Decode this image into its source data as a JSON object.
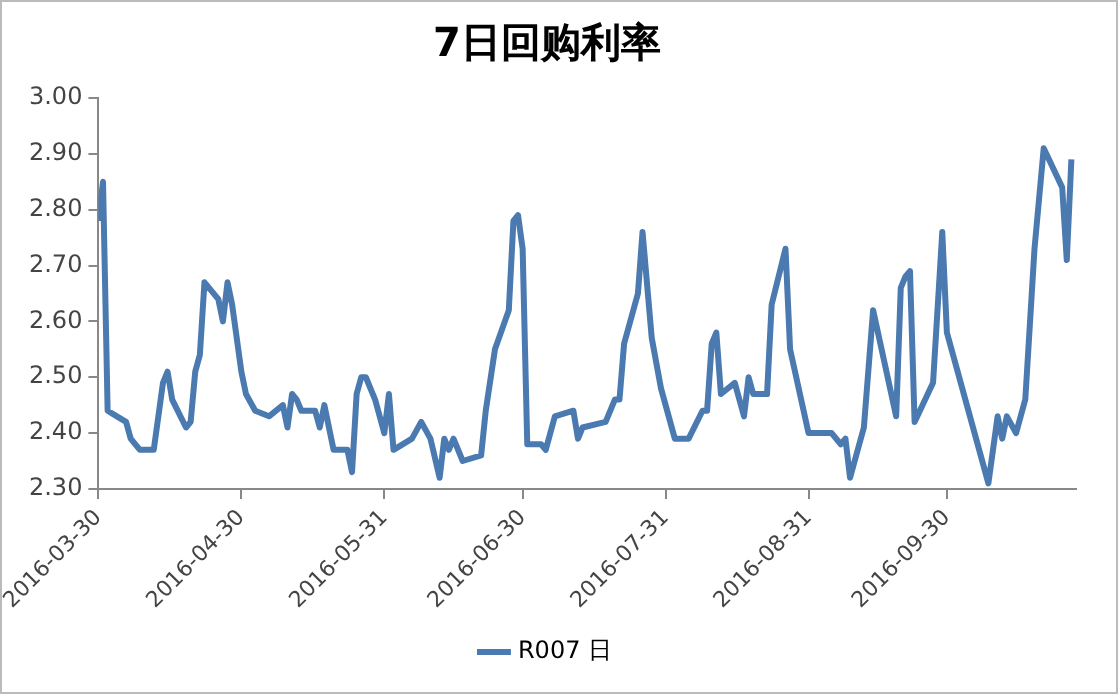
{
  "chart_data": {
    "type": "line",
    "title": "7日回购利率",
    "x": [
      "2016-03-30",
      "2016-03-31",
      "2016-04-01",
      "2016-04-03",
      "2016-04-05",
      "2016-04-06",
      "2016-04-08",
      "2016-04-11",
      "2016-04-13",
      "2016-04-14",
      "2016-04-15",
      "2016-04-18",
      "2016-04-19",
      "2016-04-20",
      "2016-04-21",
      "2016-04-22",
      "2016-04-25",
      "2016-04-26",
      "2016-04-27",
      "2016-04-28",
      "2016-04-30",
      "2016-05-01",
      "2016-05-03",
      "2016-05-06",
      "2016-05-09",
      "2016-05-10",
      "2016-05-11",
      "2016-05-12",
      "2016-05-13",
      "2016-05-16",
      "2016-05-17",
      "2016-05-18",
      "2016-05-20",
      "2016-05-23",
      "2016-05-24",
      "2016-05-25",
      "2016-05-26",
      "2016-05-27",
      "2016-05-29",
      "2016-05-31",
      "2016-06-01",
      "2016-06-02",
      "2016-06-06",
      "2016-06-08",
      "2016-06-10",
      "2016-06-12",
      "2016-06-13",
      "2016-06-14",
      "2016-06-15",
      "2016-06-17",
      "2016-06-21",
      "2016-06-22",
      "2016-06-24",
      "2016-06-27",
      "2016-06-28",
      "2016-06-29",
      "2016-06-30",
      "2016-07-01",
      "2016-07-04",
      "2016-07-05",
      "2016-07-07",
      "2016-07-11",
      "2016-07-12",
      "2016-07-13",
      "2016-07-18",
      "2016-07-20",
      "2016-07-21",
      "2016-07-22",
      "2016-07-25",
      "2016-07-26",
      "2016-07-28",
      "2016-07-30",
      "2016-08-02",
      "2016-08-03",
      "2016-08-05",
      "2016-08-08",
      "2016-08-09",
      "2016-08-10",
      "2016-08-11",
      "2016-08-12",
      "2016-08-15",
      "2016-08-17",
      "2016-08-18",
      "2016-08-19",
      "2016-08-22",
      "2016-08-23",
      "2016-08-26",
      "2016-08-27",
      "2016-08-31",
      "2016-09-02",
      "2016-09-05",
      "2016-09-07",
      "2016-09-08",
      "2016-09-09",
      "2016-09-12",
      "2016-09-14",
      "2016-09-19",
      "2016-09-20",
      "2016-09-21",
      "2016-09-22",
      "2016-09-23",
      "2016-09-27",
      "2016-09-29",
      "2016-09-30",
      "2016-10-09",
      "2016-10-11",
      "2016-10-12",
      "2016-10-13",
      "2016-10-15",
      "2016-10-17",
      "2016-10-19",
      "2016-10-21",
      "2016-10-25",
      "2016-10-26",
      "2016-10-27"
    ],
    "series": [
      {
        "name": "R007 日",
        "color": "#4a7ab0",
        "values": [
          2.78,
          2.85,
          2.44,
          2.43,
          2.42,
          2.39,
          2.37,
          2.37,
          2.49,
          2.51,
          2.46,
          2.41,
          2.42,
          2.51,
          2.54,
          2.67,
          2.64,
          2.6,
          2.67,
          2.63,
          2.51,
          2.47,
          2.44,
          2.43,
          2.45,
          2.41,
          2.47,
          2.46,
          2.44,
          2.44,
          2.41,
          2.45,
          2.37,
          2.37,
          2.33,
          2.47,
          2.5,
          2.5,
          2.46,
          2.4,
          2.47,
          2.37,
          2.39,
          2.42,
          2.39,
          2.32,
          2.39,
          2.37,
          2.39,
          2.35,
          2.36,
          2.44,
          2.55,
          2.62,
          2.78,
          2.79,
          2.73,
          2.38,
          2.38,
          2.37,
          2.43,
          2.44,
          2.39,
          2.41,
          2.42,
          2.46,
          2.46,
          2.56,
          2.65,
          2.76,
          2.57,
          2.48,
          2.39,
          2.39,
          2.39,
          2.44,
          2.44,
          2.56,
          2.58,
          2.47,
          2.49,
          2.43,
          2.5,
          2.47,
          2.47,
          2.63,
          2.73,
          2.55,
          2.4,
          2.4,
          2.4,
          2.38,
          2.39,
          2.32,
          2.41,
          2.62,
          2.43,
          2.66,
          2.68,
          2.69,
          2.42,
          2.49,
          2.76,
          2.58,
          2.31,
          2.43,
          2.39,
          2.43,
          2.4,
          2.46,
          2.73,
          2.91,
          2.84,
          2.71,
          2.89
        ]
      }
    ],
    "xlim": [
      "2016-03-30",
      "2016-10-28"
    ],
    "xticks": [
      "2016-03-30",
      "2016-04-30",
      "2016-05-31",
      "2016-06-30",
      "2016-07-31",
      "2016-08-31",
      "2016-09-30"
    ],
    "ylim": [
      2.3,
      3.0
    ],
    "yticks": [
      {
        "value": 2.3,
        "label": "2.30"
      },
      {
        "value": 2.4,
        "label": "2.40"
      },
      {
        "value": 2.5,
        "label": "2.50"
      },
      {
        "value": 2.6,
        "label": "2.60"
      },
      {
        "value": 2.7,
        "label": "2.70"
      },
      {
        "value": 2.8,
        "label": "2.80"
      },
      {
        "value": 2.9,
        "label": "2.90"
      },
      {
        "value": 3.0,
        "label": "3.00"
      }
    ],
    "grid": false,
    "legend": "bottom",
    "marker": "none",
    "line_style": "solid"
  }
}
